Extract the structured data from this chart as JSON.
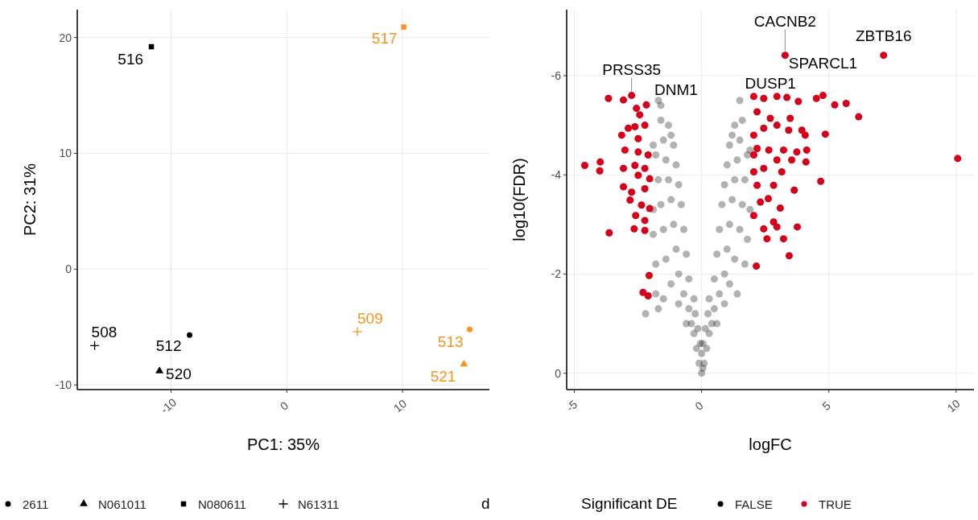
{
  "chart_data": [
    {
      "type": "scatter",
      "xlabel": "PC1: 35%",
      "ylabel": "PC2: 31%",
      "xlim": [
        -18.1,
        17.5
      ],
      "ylim": [
        -10.4,
        22.4
      ],
      "xticks": [
        -10,
        0,
        10
      ],
      "yticks": [
        -10,
        0,
        10,
        20
      ],
      "grid": true,
      "legend": "bottom",
      "series": [
        {
          "name": "2611",
          "marker": "circle",
          "x": [
            -8.4,
            15.8
          ],
          "values": [
            -5.7,
            -5.2
          ],
          "colors": [
            "#000000",
            "#f7931e"
          ]
        },
        {
          "name": "N061011",
          "marker": "triangle",
          "x": [
            -11.0,
            15.3
          ],
          "values": [
            -8.8,
            -8.2
          ],
          "colors": [
            "#000000",
            "#f7931e"
          ]
        },
        {
          "name": "N080611",
          "marker": "square",
          "x": [
            -11.7,
            10.1
          ],
          "values": [
            19.2,
            20.9
          ],
          "colors": [
            "#000000",
            "#f7931e"
          ]
        },
        {
          "name": "N61311",
          "marker": "cross",
          "x": [
            -16.6,
            6.1
          ],
          "values": [
            -6.6,
            -5.4
          ],
          "colors": [
            "#000000",
            "#f7931e"
          ]
        }
      ],
      "annotations": [
        {
          "text": "516",
          "x": -11.7,
          "y": 19.2
        },
        {
          "text": "517",
          "x": 10.1,
          "y": 20.9
        },
        {
          "text": "508",
          "x": -16.6,
          "y": -6.6
        },
        {
          "text": "512",
          "x": -8.4,
          "y": -5.7
        },
        {
          "text": "520",
          "x": -11.0,
          "y": -8.8
        },
        {
          "text": "509",
          "x": 6.1,
          "y": -5.4
        },
        {
          "text": "513",
          "x": 15.8,
          "y": -5.2
        },
        {
          "text": "521",
          "x": 15.3,
          "y": -8.2
        },
        "d"
      ]
    },
    {
      "type": "scatter",
      "xlabel": "logFC",
      "ylabel": "log10(FDR)",
      "xlim": [
        -5.3,
        10.7
      ],
      "ylim": [
        0.33,
        -7.33
      ],
      "xticks": [
        -5,
        0,
        5,
        10
      ],
      "yticks": [
        0,
        -2,
        -4,
        -6
      ],
      "grid": true,
      "legend": "bottom",
      "legend_title": "Significant DE",
      "series": [
        {
          "name": "FALSE",
          "marker": "circle",
          "color": "#000000",
          "x": [
            0,
            -0.1,
            0.1,
            -0.2,
            0.2,
            -0.3,
            0.3,
            0,
            -0.4,
            0.4,
            -0.15,
            0.15,
            -0.5,
            0.5,
            -0.6,
            0.6,
            -0.3,
            0.3,
            -0.7,
            0.7,
            -0.9,
            0.9,
            -0.5,
            0.5,
            -0.9,
            0.9,
            -1.2,
            1.1,
            -1.5,
            1.4,
            -1.7,
            -0.6,
            0.6,
            -1.0,
            1.0,
            -1.4,
            1.3,
            -1.8,
            1.7,
            -0.7,
            0.7,
            -1.1,
            1.1,
            -1.5,
            1.5,
            -1.9,
            1.8,
            -0.8,
            0.8,
            -1.2,
            1.2,
            -1.6,
            1.6,
            -1.9,
            1.9,
            -0.9,
            0.9,
            -1.3,
            1.3,
            -1.7,
            1.7,
            -1.0,
            1.0,
            -1.4,
            1.4,
            -1.8,
            1.8,
            -1.1,
            1.1,
            -1.5,
            1.5,
            -1.9,
            1.9,
            -1.3,
            1.3,
            -1.6,
            1.6,
            -1.2,
            1.2,
            -1.7,
            -1.6,
            1.5,
            0.05,
            -0.05,
            0.05,
            -0.25,
            0.25,
            -2.2,
            -1.8
          ],
          "values": [
            0,
            -0.2,
            -0.2,
            -0.5,
            -0.5,
            -0.8,
            -0.8,
            -0.4,
            -1.0,
            -1.0,
            -0.9,
            -0.9,
            -1.3,
            -1.3,
            -1.0,
            -1.0,
            -1.5,
            -1.5,
            -1.6,
            -1.6,
            -1.4,
            -1.4,
            -1.9,
            -1.9,
            -2.0,
            -2.0,
            -1.8,
            -1.8,
            -1.5,
            -1.6,
            -1.3,
            -2.4,
            -2.4,
            -2.5,
            -2.5,
            -2.3,
            -2.3,
            -2.2,
            -2.2,
            -2.9,
            -2.9,
            -3.0,
            -3.0,
            -2.9,
            -2.9,
            -2.8,
            -2.7,
            -3.4,
            -3.4,
            -3.5,
            -3.5,
            -3.4,
            -3.4,
            -3.3,
            -3.3,
            -3.8,
            -3.8,
            -3.9,
            -3.9,
            -3.9,
            -3.9,
            -4.2,
            -4.2,
            -4.3,
            -4.3,
            -4.4,
            -4.4,
            -4.6,
            -4.6,
            -4.7,
            -4.7,
            -4.6,
            -4.5,
            -5.0,
            -5.0,
            -5.1,
            -5.1,
            -4.8,
            -4.8,
            -5.5,
            -5.4,
            -5.5,
            -0.1,
            -0.6,
            -0.6,
            -1.2,
            -1.2,
            -1.2,
            -1.6
          ]
        },
        {
          "name": "TRUE",
          "marker": "circle",
          "color": "#d7001a",
          "x": [
            -3.66,
            -3.07,
            -2.75,
            -2.56,
            -2.17,
            -2.43,
            -3.14,
            -2.88,
            -2.62,
            -2.23,
            -2.49,
            -3.01,
            -2.49,
            -2.1,
            -4.59,
            -3.98,
            -4.0,
            -3.07,
            -2.62,
            -2.23,
            -2.49,
            -2.04,
            -3.07,
            -2.75,
            -2.23,
            -2.81,
            -2.36,
            -2.04,
            -2.59,
            -2.23,
            -2.65,
            -2.23,
            -3.63,
            -2.06,
            -2.3,
            -2.1,
            3.28,
            7.15,
            2.05,
            2.44,
            2.96,
            3.35,
            3.8,
            4.51,
            4.77,
            5.23,
            5.68,
            6.17,
            2.18,
            2.7,
            3.48,
            2.05,
            2.44,
            2.96,
            3.42,
            3.94,
            4.07,
            4.86,
            2.18,
            2.64,
            3.22,
            3.74,
            4.13,
            2.05,
            2.96,
            3.54,
            4.1,
            10.06,
            2.05,
            2.44,
            3.15,
            4.68,
            2.18,
            2.83,
            3.64,
            2.31,
            2.62,
            3.09,
            2.05,
            2.83,
            2.44,
            2.96,
            3.76,
            2.57,
            3.22,
            3.44,
            2.15
          ],
          "values": [
            -5.54,
            -5.51,
            -5.6,
            -5.34,
            -5.41,
            -5.21,
            -4.8,
            -4.94,
            -4.97,
            -5.0,
            -4.73,
            -4.5,
            -4.46,
            -4.4,
            -4.19,
            -4.26,
            -4.08,
            -4.13,
            -4.19,
            -4.13,
            -3.99,
            -3.92,
            -3.76,
            -3.65,
            -3.72,
            -3.49,
            -3.39,
            -3.32,
            -3.18,
            -3.08,
            -2.91,
            -2.88,
            -2.83,
            -1.97,
            -1.63,
            -1.56,
            -6.41,
            -6.41,
            -5.58,
            -5.54,
            -5.58,
            -5.56,
            -5.48,
            -5.54,
            -5.6,
            -5.41,
            -5.44,
            -5.17,
            -5.27,
            -5.14,
            -5.14,
            -4.8,
            -4.94,
            -5.0,
            -4.9,
            -4.9,
            -4.8,
            -4.82,
            -4.53,
            -4.5,
            -4.5,
            -4.46,
            -4.5,
            -4.4,
            -4.3,
            -4.3,
            -4.26,
            -4.33,
            -4.06,
            -4.13,
            -4.06,
            -3.87,
            -3.79,
            -3.79,
            -3.69,
            -3.45,
            -3.52,
            -3.33,
            -3.18,
            -3.05,
            -2.91,
            -2.95,
            -2.95,
            -2.71,
            -2.71,
            -2.37,
            -2.16
          ]
        }
      ],
      "annotations": [
        {
          "text": "PRSS35",
          "x": -2.75,
          "y": -5.6
        },
        {
          "text": "DNM1",
          "x": -2.17,
          "y": -5.41
        },
        {
          "text": "CACNB2",
          "x": 3.28,
          "y": -6.41
        },
        {
          "text": "ZBTB16",
          "x": 7.15,
          "y": -6.41
        },
        {
          "text": "SPARCL1",
          "x": 4.77,
          "y": -5.6
        },
        {
          "text": "DUSP1",
          "x": 2.96,
          "y": -5.58
        }
      ]
    }
  ]
}
